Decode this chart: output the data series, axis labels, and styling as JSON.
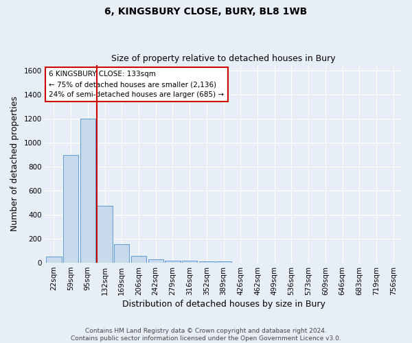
{
  "title": "6, KINGSBURY CLOSE, BURY, BL8 1WB",
  "subtitle": "Size of property relative to detached houses in Bury",
  "xlabel": "Distribution of detached houses by size in Bury",
  "ylabel": "Number of detached properties",
  "bar_labels": [
    "22sqm",
    "59sqm",
    "95sqm",
    "132sqm",
    "169sqm",
    "206sqm",
    "242sqm",
    "279sqm",
    "316sqm",
    "352sqm",
    "389sqm",
    "426sqm",
    "462sqm",
    "499sqm",
    "536sqm",
    "573sqm",
    "609sqm",
    "646sqm",
    "683sqm",
    "719sqm",
    "756sqm"
  ],
  "bar_values": [
    50,
    900,
    1200,
    475,
    155,
    55,
    30,
    15,
    15,
    13,
    13,
    0,
    0,
    0,
    0,
    0,
    0,
    0,
    0,
    0,
    0
  ],
  "bar_color": "#c9d9ec",
  "bar_edge_color": "#5b9bd5",
  "vline_x_index": 2.55,
  "vline_color": "#cc0000",
  "annotation_text": "6 KINGSBURY CLOSE: 133sqm\n← 75% of detached houses are smaller (2,136)\n24% of semi-detached houses are larger (685) →",
  "annotation_box_color": "#ffffff",
  "annotation_box_edge": "#cc0000",
  "ylim": [
    0,
    1650
  ],
  "yticks": [
    0,
    200,
    400,
    600,
    800,
    1000,
    1200,
    1400,
    1600
  ],
  "bg_color": "#e8eef5",
  "plot_bg_color": "#e8eef5",
  "grid_color": "#ffffff",
  "footer_line1": "Contains HM Land Registry data © Crown copyright and database right 2024.",
  "footer_line2": "Contains public sector information licensed under the Open Government Licence v3.0.",
  "title_fontsize": 10,
  "subtitle_fontsize": 9,
  "axis_label_fontsize": 9,
  "tick_fontsize": 7.5,
  "annotation_fontsize": 7.5,
  "footer_fontsize": 6.5
}
